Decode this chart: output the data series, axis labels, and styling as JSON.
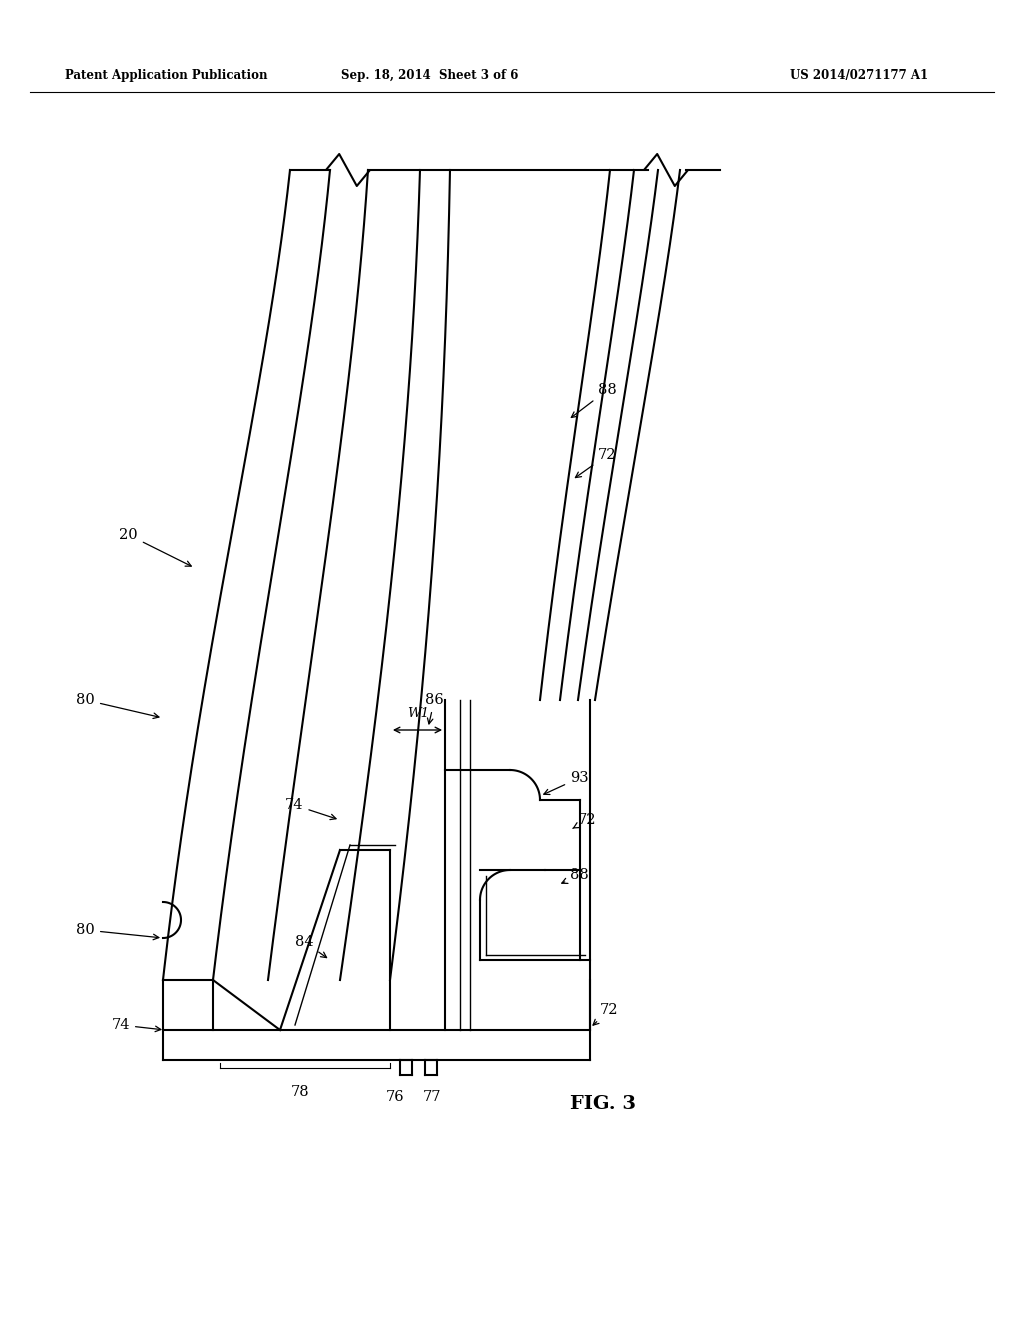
{
  "background": "#ffffff",
  "line_color": "#000000",
  "header_left": "Patent Application Publication",
  "header_mid": "Sep. 18, 2014  Sheet 3 of 6",
  "header_right": "US 2014/0271177 A1",
  "fig_label": "FIG. 3",
  "lw_main": 1.5,
  "lw_thin": 1.0
}
